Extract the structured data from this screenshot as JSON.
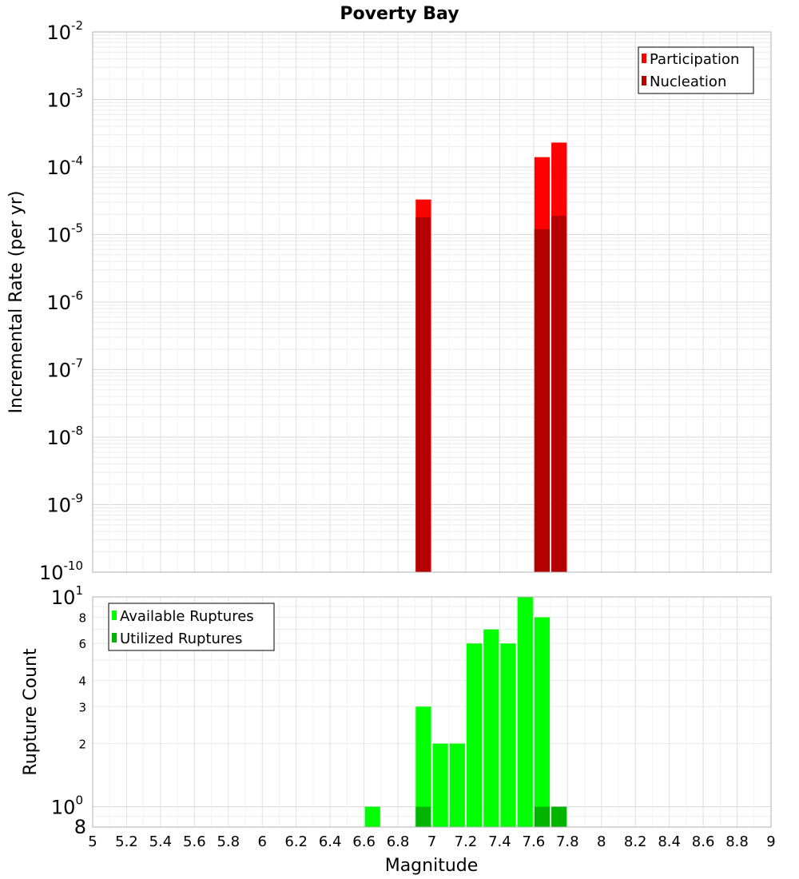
{
  "chart_data": [
    {
      "type": "bar",
      "panel": "top",
      "title": "Poverty Bay",
      "ylabel": "Incremental Rate (per yr)",
      "xlim": [
        5,
        9
      ],
      "ylim": [
        1e-10,
        0.01
      ],
      "yscale": "log",
      "bar_width": 0.1,
      "grid": true,
      "legend_position": "top-right",
      "y_ticks": [
        {
          "base": "10",
          "exp": "-2",
          "value": 0.01
        },
        {
          "base": "10",
          "exp": "-3",
          "value": 0.001
        },
        {
          "base": "10",
          "exp": "-4",
          "value": 0.0001
        },
        {
          "base": "10",
          "exp": "-5",
          "value": 1e-05
        },
        {
          "base": "10",
          "exp": "-6",
          "value": 1e-06
        },
        {
          "base": "10",
          "exp": "-7",
          "value": 1e-07
        },
        {
          "base": "10",
          "exp": "-8",
          "value": 1e-08
        },
        {
          "base": "10",
          "exp": "-9",
          "value": 1e-09
        },
        {
          "base": "10",
          "exp": "-10",
          "value": 1e-10
        }
      ],
      "series": [
        {
          "name": "Participation",
          "color": "#ff0000",
          "points": [
            {
              "x": 6.95,
              "y": 3.3e-05
            },
            {
              "x": 7.65,
              "y": 0.00014
            },
            {
              "x": 7.75,
              "y": 0.00023
            }
          ]
        },
        {
          "name": "Nucleation",
          "color": "#b40000",
          "points": [
            {
              "x": 6.95,
              "y": 1.8e-05
            },
            {
              "x": 7.65,
              "y": 1.2e-05
            },
            {
              "x": 7.75,
              "y": 1.9e-05
            }
          ]
        }
      ]
    },
    {
      "type": "bar",
      "panel": "bottom",
      "ylabel": "Rupture Count",
      "xlabel": "Magnitude",
      "xlim": [
        5,
        9
      ],
      "ylim": [
        0.8,
        10
      ],
      "yscale": "log",
      "bar_width": 0.1,
      "grid": true,
      "legend_position": "top-left",
      "x_ticks": [
        "5",
        "5.2",
        "5.4",
        "5.6",
        "5.8",
        "6",
        "6.2",
        "6.4",
        "6.6",
        "6.8",
        "7",
        "7.2",
        "7.4",
        "7.6",
        "7.8",
        "8",
        "8.2",
        "8.4",
        "8.6",
        "8.8",
        "9"
      ],
      "y_ticks_major": [
        {
          "base": "10",
          "exp": "1",
          "value": 10
        },
        {
          "base": "10",
          "exp": "0",
          "value": 1
        }
      ],
      "y_ticks_minor": [
        {
          "label": "8",
          "value": 8
        },
        {
          "label": "6",
          "value": 6
        },
        {
          "label": "4",
          "value": 4
        },
        {
          "label": "3",
          "value": 3
        },
        {
          "label": "2",
          "value": 2
        }
      ],
      "y_tick_bottom": {
        "label": "8",
        "value": 0.8
      },
      "series": [
        {
          "name": "Available Ruptures",
          "color": "#00ff00",
          "points": [
            {
              "x": 6.65,
              "y": 1
            },
            {
              "x": 6.95,
              "y": 3
            },
            {
              "x": 7.05,
              "y": 2
            },
            {
              "x": 7.15,
              "y": 2
            },
            {
              "x": 7.25,
              "y": 6
            },
            {
              "x": 7.35,
              "y": 7
            },
            {
              "x": 7.45,
              "y": 6
            },
            {
              "x": 7.55,
              "y": 10
            },
            {
              "x": 7.65,
              "y": 8
            }
          ]
        },
        {
          "name": "Utilized Ruptures",
          "color": "#00b400",
          "points": [
            {
              "x": 6.95,
              "y": 1
            },
            {
              "x": 7.65,
              "y": 1
            },
            {
              "x": 7.75,
              "y": 1
            }
          ]
        }
      ]
    }
  ]
}
